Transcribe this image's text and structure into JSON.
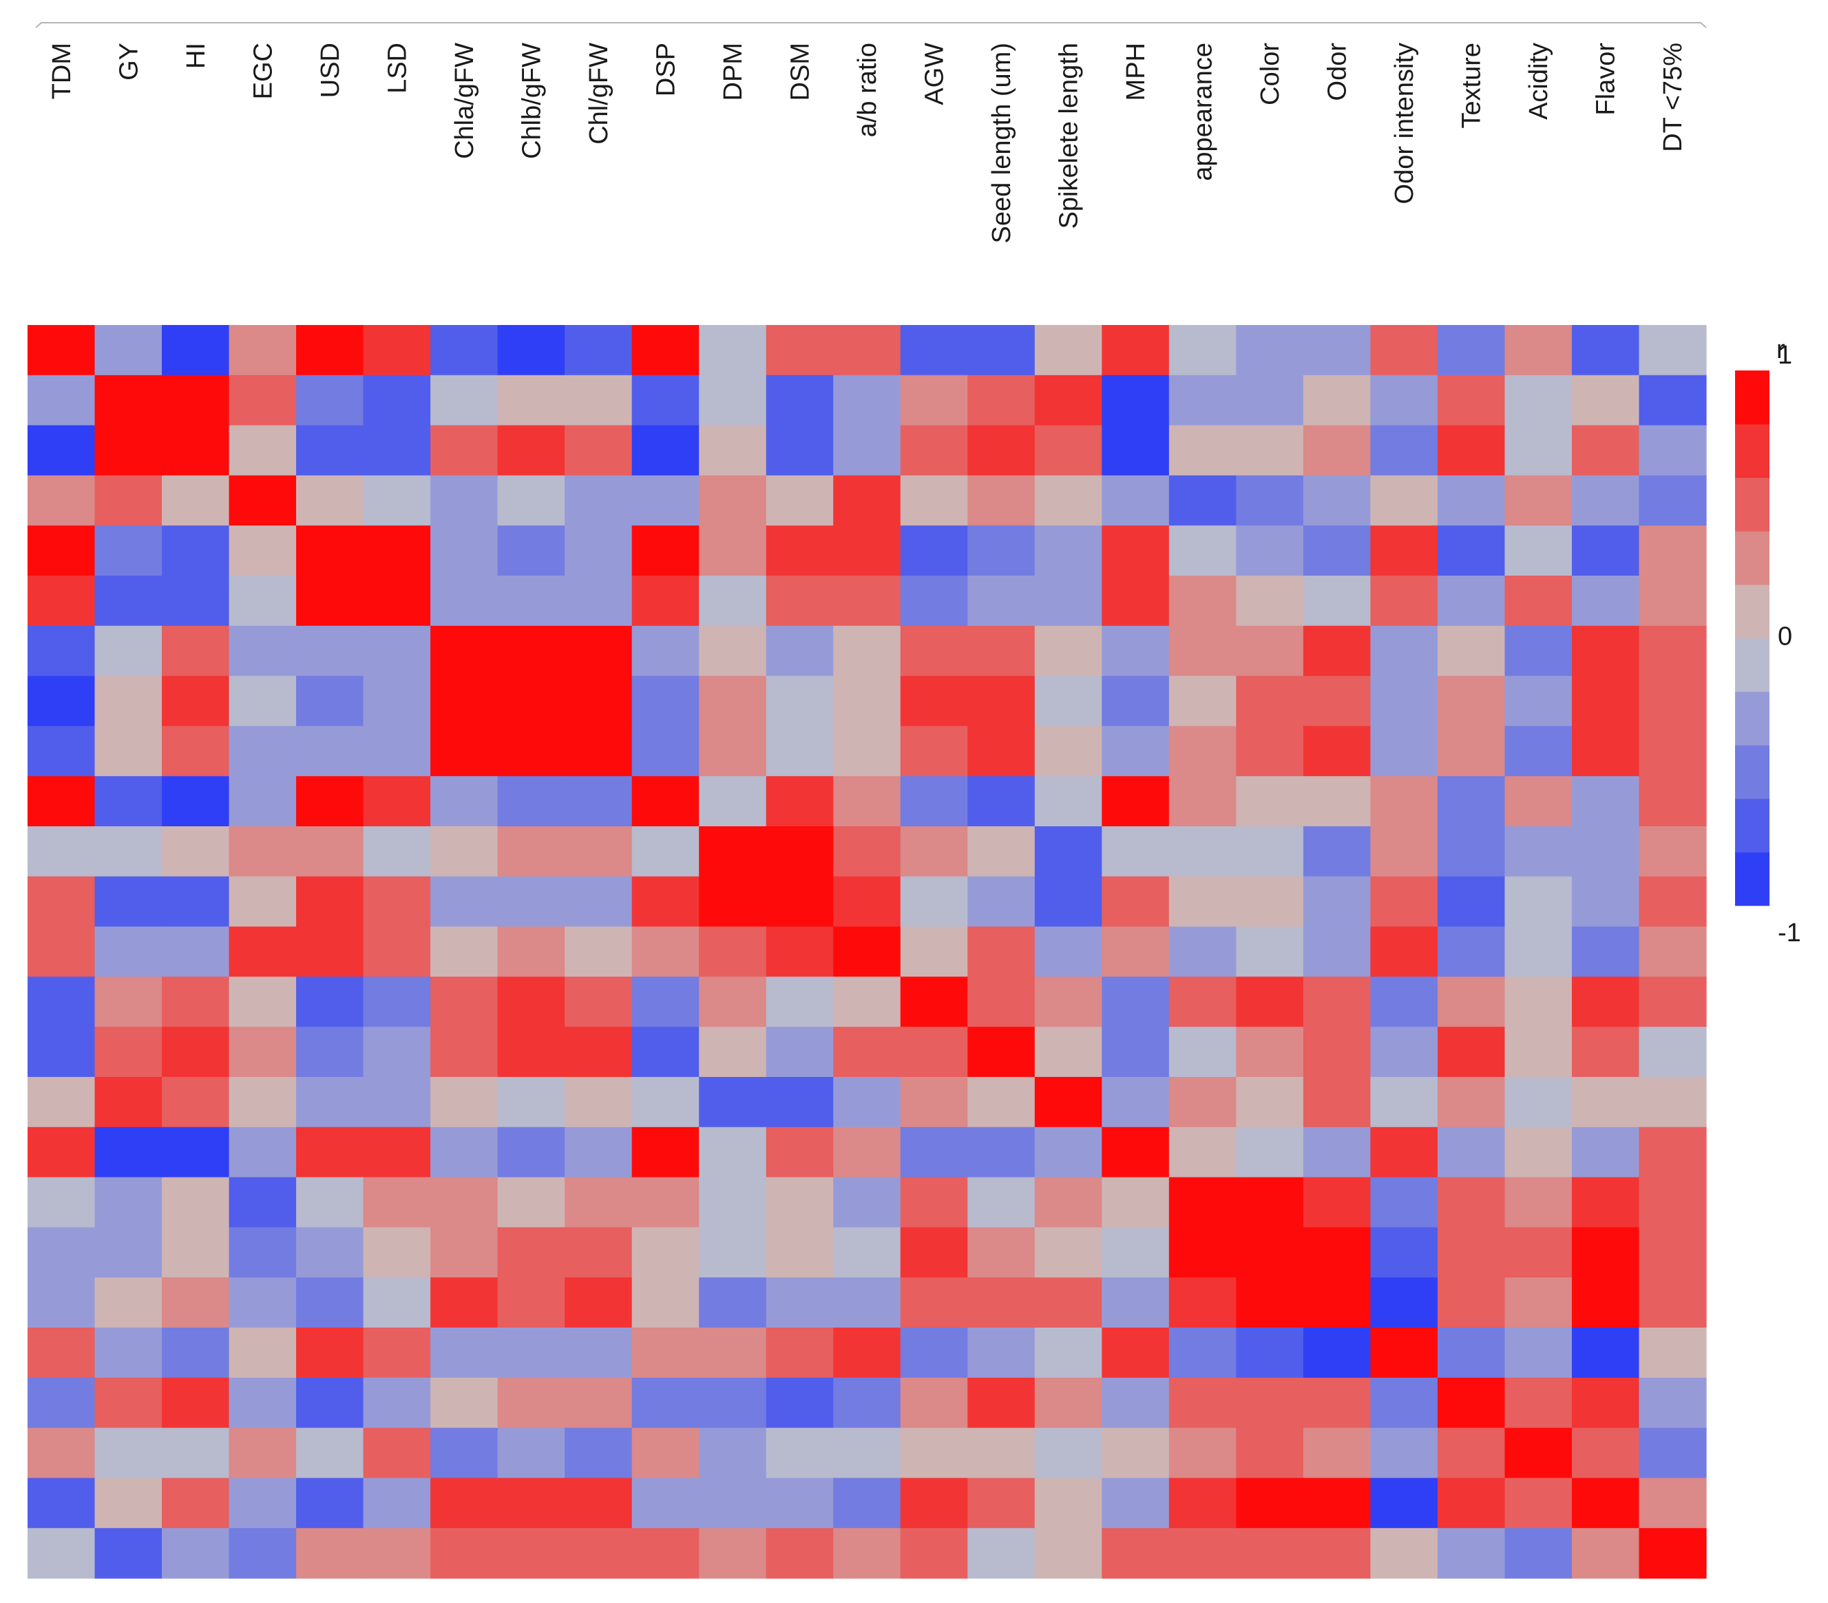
{
  "chart_data": {
    "type": "heatmap",
    "title": "",
    "variables": [
      "TDM",
      "GY",
      "HI",
      "EGC",
      "USD",
      "LSD",
      "Chla/gFW",
      "Chlb/gFW",
      "Chl/gFW",
      "DSP",
      "DPM",
      "DSM",
      "a/b ratio",
      "AGW",
      "Seed length (um)",
      "Spikelete length",
      "MPH",
      "appearance",
      "Color",
      "Odor",
      "Odor intensity",
      "Texture",
      "Acidity",
      "Flavor",
      "DT <75%"
    ],
    "row_labels_shown": false,
    "matrix": [
      [
        1.0,
        -0.3,
        -0.9,
        0.3,
        0.8,
        0.6,
        -0.7,
        -0.9,
        -0.8,
        0.8,
        -0.2,
        0.5,
        0.4,
        -0.7,
        -0.7,
        0.1,
        0.7,
        -0.2,
        -0.4,
        -0.4,
        0.5,
        -0.6,
        0.3,
        -0.7,
        -0.1
      ],
      [
        -0.3,
        1.0,
        0.8,
        0.5,
        -0.6,
        -0.7,
        -0.1,
        0.1,
        0.0,
        -0.8,
        -0.2,
        -0.7,
        -0.4,
        0.2,
        0.4,
        0.6,
        -0.9,
        -0.3,
        -0.4,
        0.0,
        -0.3,
        0.4,
        -0.1,
        0.0,
        -0.7
      ],
      [
        -0.9,
        0.8,
        1.0,
        0.1,
        -0.8,
        -0.8,
        0.4,
        0.6,
        0.5,
        -0.95,
        0.1,
        -0.7,
        -0.4,
        0.5,
        0.7,
        0.4,
        -0.95,
        0.0,
        0.0,
        0.3,
        -0.5,
        0.7,
        -0.2,
        0.5,
        -0.4
      ],
      [
        0.3,
        0.5,
        0.1,
        1.0,
        0.0,
        -0.2,
        -0.4,
        -0.2,
        -0.3,
        -0.3,
        0.3,
        0.1,
        0.6,
        0.0,
        0.3,
        0.0,
        -0.3,
        -0.7,
        -0.6,
        -0.4,
        0.1,
        -0.4,
        0.2,
        -0.4,
        -0.6
      ],
      [
        0.8,
        -0.6,
        -0.8,
        0.0,
        1.0,
        0.8,
        -0.3,
        -0.5,
        -0.4,
        0.8,
        0.2,
        0.7,
        0.6,
        -0.7,
        -0.5,
        -0.4,
        0.7,
        -0.2,
        -0.4,
        -0.5,
        0.7,
        -0.7,
        -0.2,
        -0.7,
        0.3
      ],
      [
        0.6,
        -0.7,
        -0.8,
        -0.2,
        0.8,
        1.0,
        -0.3,
        -0.4,
        -0.3,
        0.7,
        -0.1,
        0.5,
        0.4,
        -0.5,
        -0.3,
        -0.4,
        0.7,
        0.2,
        0.1,
        -0.2,
        0.5,
        -0.3,
        0.4,
        -0.3,
        0.2
      ],
      [
        -0.7,
        -0.1,
        0.4,
        -0.4,
        -0.3,
        -0.3,
        1.0,
        0.9,
        0.95,
        -0.4,
        0.0,
        -0.3,
        0.1,
        0.4,
        0.5,
        0.1,
        -0.3,
        0.2,
        0.3,
        0.6,
        -0.3,
        0.1,
        -0.6,
        0.6,
        0.5
      ],
      [
        -0.9,
        0.1,
        0.6,
        -0.1,
        -0.5,
        -0.4,
        0.9,
        1.0,
        0.97,
        -0.6,
        0.3,
        -0.2,
        0.1,
        0.6,
        0.7,
        -0.1,
        -0.5,
        0.1,
        0.4,
        0.5,
        -0.4,
        0.3,
        -0.4,
        0.6,
        0.4
      ],
      [
        -0.8,
        0.0,
        0.5,
        -0.3,
        -0.4,
        -0.3,
        0.95,
        0.97,
        1.0,
        -0.5,
        0.2,
        -0.2,
        0.1,
        0.5,
        0.6,
        0.0,
        -0.4,
        0.2,
        0.4,
        0.6,
        -0.3,
        0.2,
        -0.5,
        0.6,
        0.5
      ],
      [
        0.8,
        -0.8,
        -0.95,
        -0.3,
        0.8,
        0.7,
        -0.4,
        -0.6,
        -0.5,
        1.0,
        -0.2,
        0.6,
        0.2,
        -0.6,
        -0.7,
        -0.1,
        0.8,
        0.3,
        0.1,
        0.0,
        0.3,
        -0.5,
        0.2,
        -0.4,
        0.5
      ],
      [
        -0.2,
        -0.2,
        0.1,
        0.3,
        0.2,
        -0.1,
        0.0,
        0.3,
        0.2,
        -0.2,
        1.0,
        0.8,
        0.5,
        0.3,
        0.1,
        -0.8,
        -0.1,
        -0.2,
        -0.1,
        -0.5,
        0.3,
        -0.5,
        -0.3,
        -0.3,
        0.2
      ],
      [
        0.5,
        -0.7,
        -0.7,
        0.1,
        0.7,
        0.5,
        -0.3,
        -0.3,
        -0.3,
        0.6,
        0.8,
        1.0,
        0.6,
        -0.2,
        -0.4,
        -0.7,
        0.5,
        0.1,
        0.0,
        -0.4,
        0.5,
        -0.7,
        -0.1,
        -0.4,
        0.5
      ],
      [
        0.4,
        -0.4,
        -0.4,
        0.6,
        0.6,
        0.4,
        0.1,
        0.2,
        0.1,
        0.2,
        0.5,
        0.6,
        1.0,
        0.0,
        0.4,
        -0.3,
        0.3,
        -0.3,
        -0.2,
        -0.4,
        0.6,
        -0.5,
        -0.2,
        -0.5,
        0.3
      ],
      [
        -0.7,
        0.2,
        0.5,
        0.0,
        -0.7,
        -0.5,
        0.4,
        0.6,
        0.5,
        -0.6,
        0.3,
        -0.2,
        0.0,
        1.0,
        0.4,
        0.3,
        -0.5,
        0.5,
        0.6,
        0.5,
        -0.5,
        0.3,
        0.0,
        0.7,
        0.4
      ],
      [
        -0.7,
        0.4,
        0.7,
        0.3,
        -0.5,
        -0.3,
        0.5,
        0.7,
        0.6,
        -0.7,
        0.1,
        -0.4,
        0.4,
        0.4,
        1.0,
        0.0,
        -0.5,
        -0.2,
        0.2,
        0.4,
        -0.4,
        0.6,
        0.1,
        0.5,
        -0.2
      ],
      [
        0.1,
        0.6,
        0.4,
        0.0,
        -0.4,
        -0.4,
        0.1,
        -0.1,
        0.0,
        -0.1,
        -0.8,
        -0.7,
        -0.3,
        0.3,
        0.0,
        1.0,
        -0.3,
        0.2,
        0.0,
        0.4,
        -0.2,
        0.3,
        -0.2,
        0.1,
        0.0
      ],
      [
        0.7,
        -0.9,
        -0.95,
        -0.3,
        0.7,
        0.7,
        -0.3,
        -0.5,
        -0.4,
        0.8,
        -0.1,
        0.5,
        0.3,
        -0.5,
        -0.5,
        -0.3,
        1.0,
        0.0,
        -0.2,
        -0.4,
        0.6,
        -0.4,
        0.0,
        -0.4,
        0.4
      ],
      [
        -0.2,
        -0.3,
        0.0,
        -0.7,
        -0.2,
        0.2,
        0.2,
        0.1,
        0.2,
        0.3,
        -0.2,
        0.1,
        -0.3,
        0.5,
        -0.2,
        0.2,
        0.0,
        1.0,
        0.9,
        0.6,
        -0.5,
        0.4,
        0.3,
        0.6,
        0.5
      ],
      [
        -0.4,
        -0.4,
        0.0,
        -0.6,
        -0.4,
        0.1,
        0.3,
        0.4,
        0.4,
        0.1,
        -0.1,
        0.0,
        -0.2,
        0.6,
        0.2,
        0.0,
        -0.2,
        0.9,
        1.0,
        0.8,
        -0.7,
        0.4,
        0.5,
        0.8,
        0.5
      ],
      [
        -0.4,
        0.0,
        0.3,
        -0.4,
        -0.5,
        -0.2,
        0.6,
        0.5,
        0.6,
        0.0,
        -0.5,
        -0.4,
        -0.4,
        0.5,
        0.4,
        0.4,
        -0.4,
        0.6,
        0.8,
        1.0,
        -0.95,
        0.5,
        0.3,
        0.9,
        0.4
      ],
      [
        0.5,
        -0.3,
        -0.5,
        0.1,
        0.7,
        0.5,
        -0.3,
        -0.4,
        -0.3,
        0.3,
        0.3,
        0.5,
        0.6,
        -0.5,
        -0.4,
        -0.2,
        0.6,
        -0.5,
        -0.7,
        -0.95,
        1.0,
        -0.5,
        -0.4,
        -0.9,
        0.1
      ],
      [
        -0.6,
        0.4,
        0.7,
        -0.4,
        -0.7,
        -0.3,
        0.1,
        0.3,
        0.2,
        -0.5,
        -0.5,
        -0.7,
        -0.5,
        0.3,
        0.6,
        0.3,
        -0.4,
        0.4,
        0.4,
        0.5,
        -0.5,
        1.0,
        0.5,
        0.6,
        -0.3
      ],
      [
        0.3,
        -0.1,
        -0.2,
        0.2,
        -0.2,
        0.4,
        -0.6,
        -0.4,
        -0.5,
        0.2,
        -0.3,
        -0.1,
        -0.2,
        0.0,
        0.1,
        -0.2,
        0.0,
        0.3,
        0.5,
        0.3,
        -0.4,
        0.5,
        1.0,
        0.4,
        -0.5
      ],
      [
        -0.7,
        0.0,
        0.5,
        -0.4,
        -0.7,
        -0.3,
        0.6,
        0.6,
        0.6,
        -0.4,
        -0.3,
        -0.4,
        -0.5,
        0.7,
        0.5,
        0.1,
        -0.4,
        0.6,
        0.8,
        0.9,
        -0.9,
        0.6,
        0.4,
        1.0,
        0.3
      ],
      [
        -0.1,
        -0.7,
        -0.4,
        -0.6,
        0.3,
        0.2,
        0.5,
        0.4,
        0.5,
        0.5,
        0.2,
        0.5,
        0.3,
        0.4,
        -0.2,
        0.0,
        0.4,
        0.5,
        0.5,
        0.4,
        0.1,
        -0.3,
        -0.5,
        0.3,
        1.0
      ]
    ],
    "color_scale": {
      "title": "r",
      "ticks": [
        {
          "value": -1,
          "label": "-1"
        },
        {
          "value": 0,
          "label": "0"
        },
        {
          "value": 1,
          "label": "1"
        }
      ],
      "range": [
        -1,
        1
      ],
      "negative_color": "#2f3ff5",
      "neutral_color": "#c9c9c9",
      "positive_color": "#ff0a0a",
      "bins": [
        -1.0,
        -0.8,
        -0.6,
        -0.4,
        -0.2,
        0.0,
        0.2,
        0.4,
        0.6,
        0.8,
        1.0
      ]
    }
  }
}
